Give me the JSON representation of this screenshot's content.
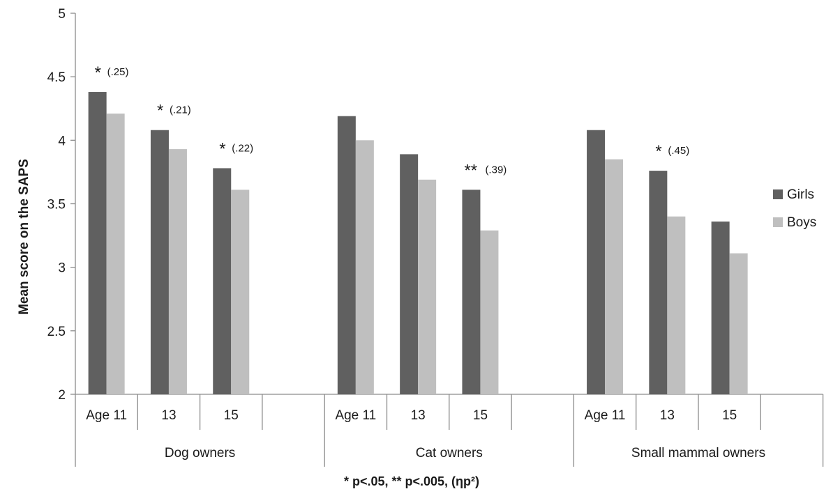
{
  "chart_data": {
    "type": "bar",
    "ylabel": "Mean score on the SAPS",
    "xlabel": "* p<.05, ** p<.005, (ηp²)",
    "ylim": [
      2,
      5
    ],
    "yticks": [
      "2",
      "2.5",
      "3",
      "3.5",
      "4",
      "4.5",
      "5"
    ],
    "grid": false,
    "legend_position": "right",
    "groups": [
      {
        "label": "Dog owners",
        "categories": [
          "Age 11",
          "13",
          "15"
        ]
      },
      {
        "label": "Cat owners",
        "categories": [
          "Age 11",
          "13",
          "15"
        ]
      },
      {
        "label": "Small mammal owners",
        "categories": [
          "Age 11",
          "13",
          "15"
        ]
      }
    ],
    "series": [
      {
        "name": "Girls",
        "color": "#606060",
        "values": [
          4.38,
          4.08,
          3.78,
          4.19,
          3.89,
          3.61,
          4.08,
          3.76,
          3.36
        ]
      },
      {
        "name": "Boys",
        "color": "#bfbfbf",
        "values": [
          4.21,
          3.93,
          3.61,
          4.0,
          3.69,
          3.29,
          3.85,
          3.4,
          3.11
        ]
      }
    ],
    "annotations": [
      {
        "index": 0,
        "stars": "*",
        "effect": "(.25)"
      },
      {
        "index": 1,
        "stars": "*",
        "effect": "(.21)"
      },
      {
        "index": 2,
        "stars": "*",
        "effect": "(.22)"
      },
      {
        "index": 5,
        "stars": "**",
        "effect": "(.39)"
      },
      {
        "index": 7,
        "stars": "*",
        "effect": "(.45)"
      }
    ]
  }
}
